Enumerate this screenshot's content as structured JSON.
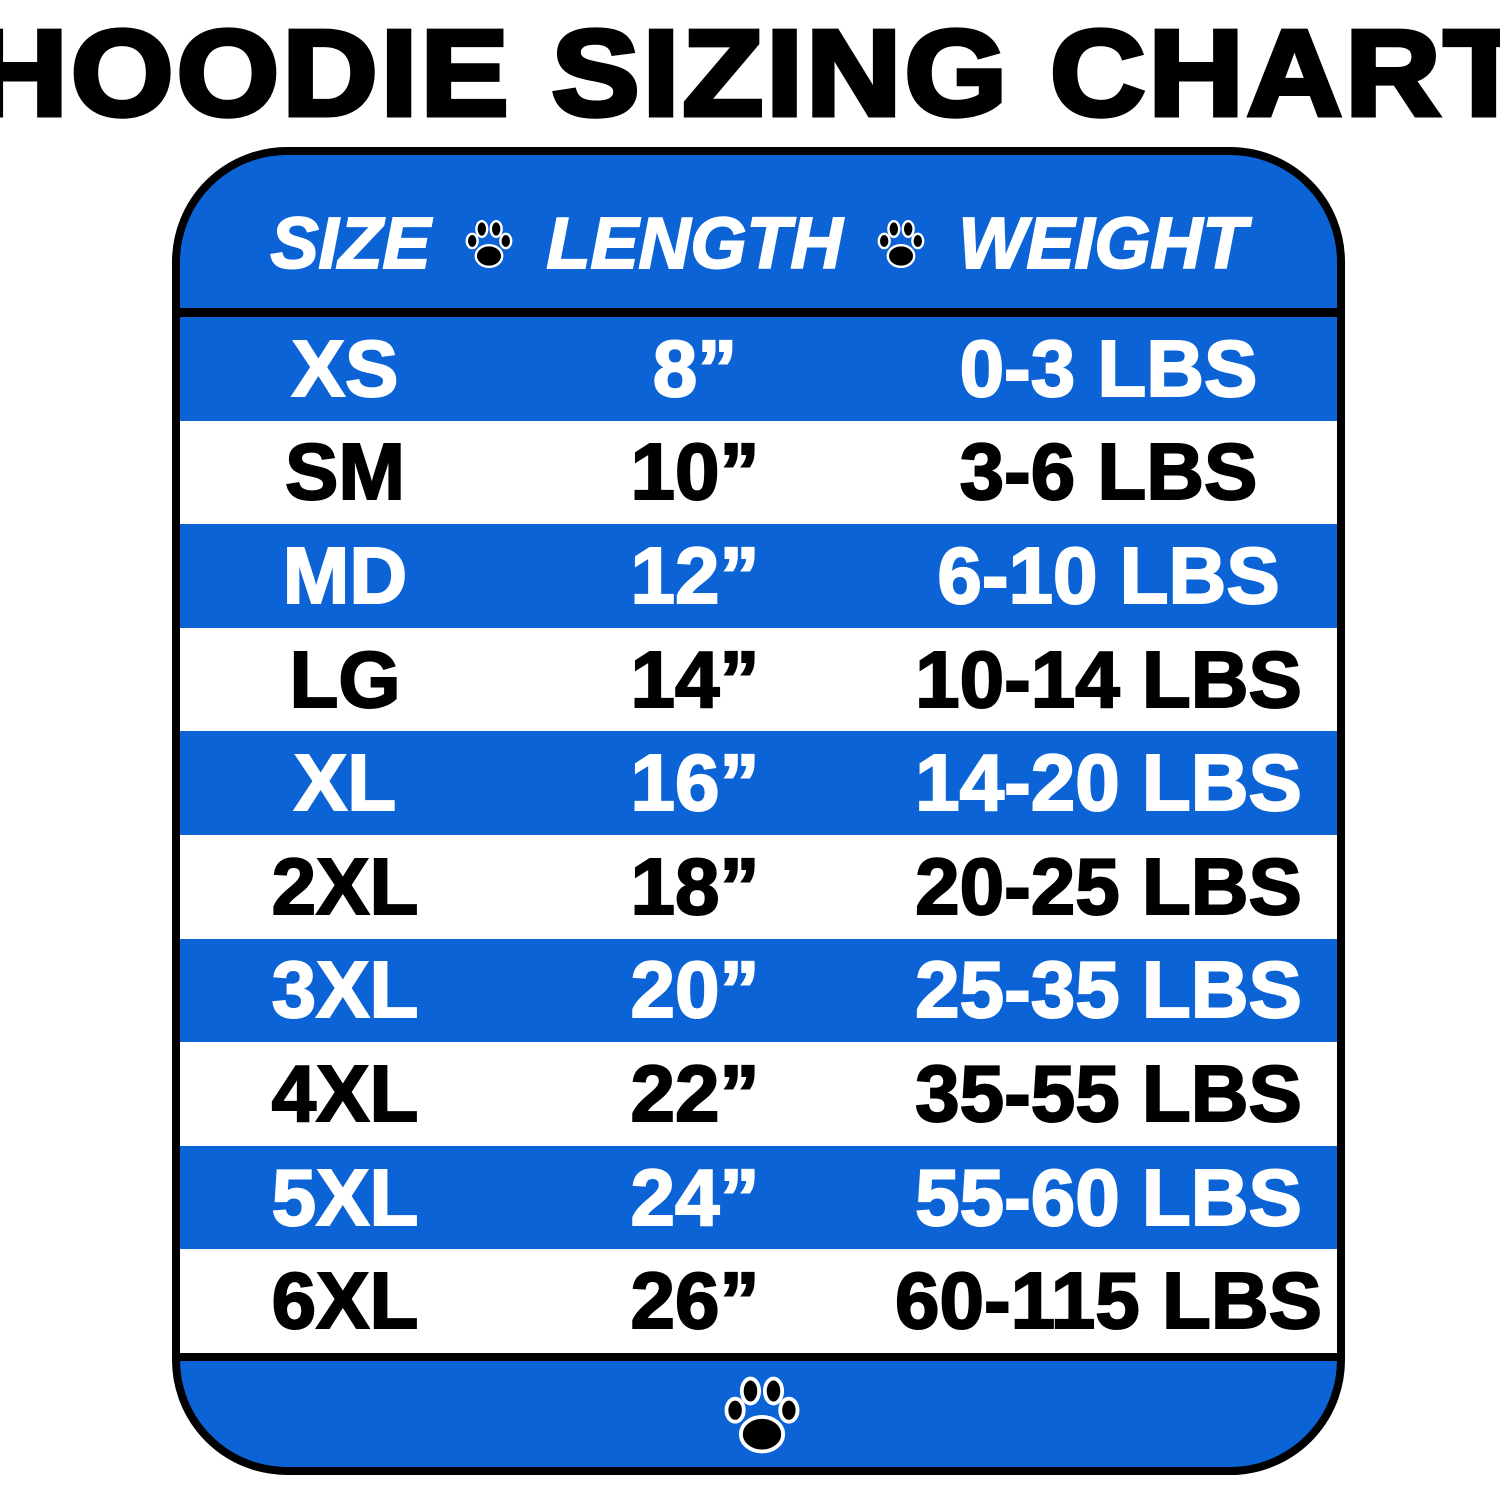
{
  "title": "HOODIE SIZING CHART",
  "colors": {
    "blue": "#0b63d6",
    "white": "#ffffff",
    "black": "#000000"
  },
  "icons": {
    "separator": "paw-print-icon",
    "footer": "paw-print-icon"
  },
  "chart_data": {
    "type": "table",
    "title": "HOODIE SIZING CHART",
    "columns": [
      "SIZE",
      "LENGTH",
      "WEIGHT"
    ],
    "rows": [
      [
        "XS",
        "8”",
        "0-3 LBS"
      ],
      [
        "SM",
        "10”",
        "3-6 LBS"
      ],
      [
        "MD",
        "12”",
        "6-10 LBS"
      ],
      [
        "LG",
        "14”",
        "10-14 LBS"
      ],
      [
        "XL",
        "16”",
        "14-20 LBS"
      ],
      [
        "2XL",
        "18”",
        "20-25 LBS"
      ],
      [
        "3XL",
        "20”",
        "25-35 LBS"
      ],
      [
        "4XL",
        "22”",
        "35-55 LBS"
      ],
      [
        "5XL",
        "24”",
        "55-60 LBS"
      ],
      [
        "6XL",
        "26”",
        "60-115 LBS"
      ]
    ]
  }
}
